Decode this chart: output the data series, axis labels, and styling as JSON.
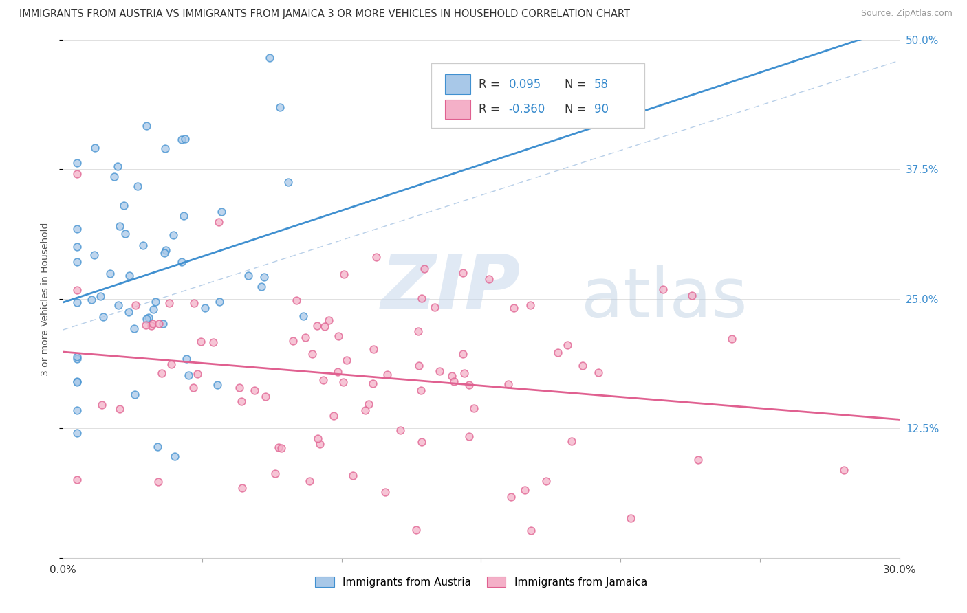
{
  "title": "IMMIGRANTS FROM AUSTRIA VS IMMIGRANTS FROM JAMAICA 3 OR MORE VEHICLES IN HOUSEHOLD CORRELATION CHART",
  "source": "Source: ZipAtlas.com",
  "ylabel": "3 or more Vehicles in Household",
  "legend_label1": "Immigrants from Austria",
  "legend_label2": "Immigrants from Jamaica",
  "R1": 0.095,
  "N1": 58,
  "R2": -0.36,
  "N2": 90,
  "xlim": [
    0.0,
    0.3
  ],
  "ylim": [
    0.0,
    0.5
  ],
  "xticks": [
    0.0,
    0.05,
    0.1,
    0.15,
    0.2,
    0.25,
    0.3
  ],
  "yticks": [
    0.0,
    0.125,
    0.25,
    0.375,
    0.5
  ],
  "color_austria": "#a8c8e8",
  "color_jamaica": "#f4b0c8",
  "line_color_austria": "#4090d0",
  "line_color_jamaica": "#e06090",
  "background_color": "#ffffff",
  "grid_color": "#e8e8e8",
  "dot_size": 60
}
